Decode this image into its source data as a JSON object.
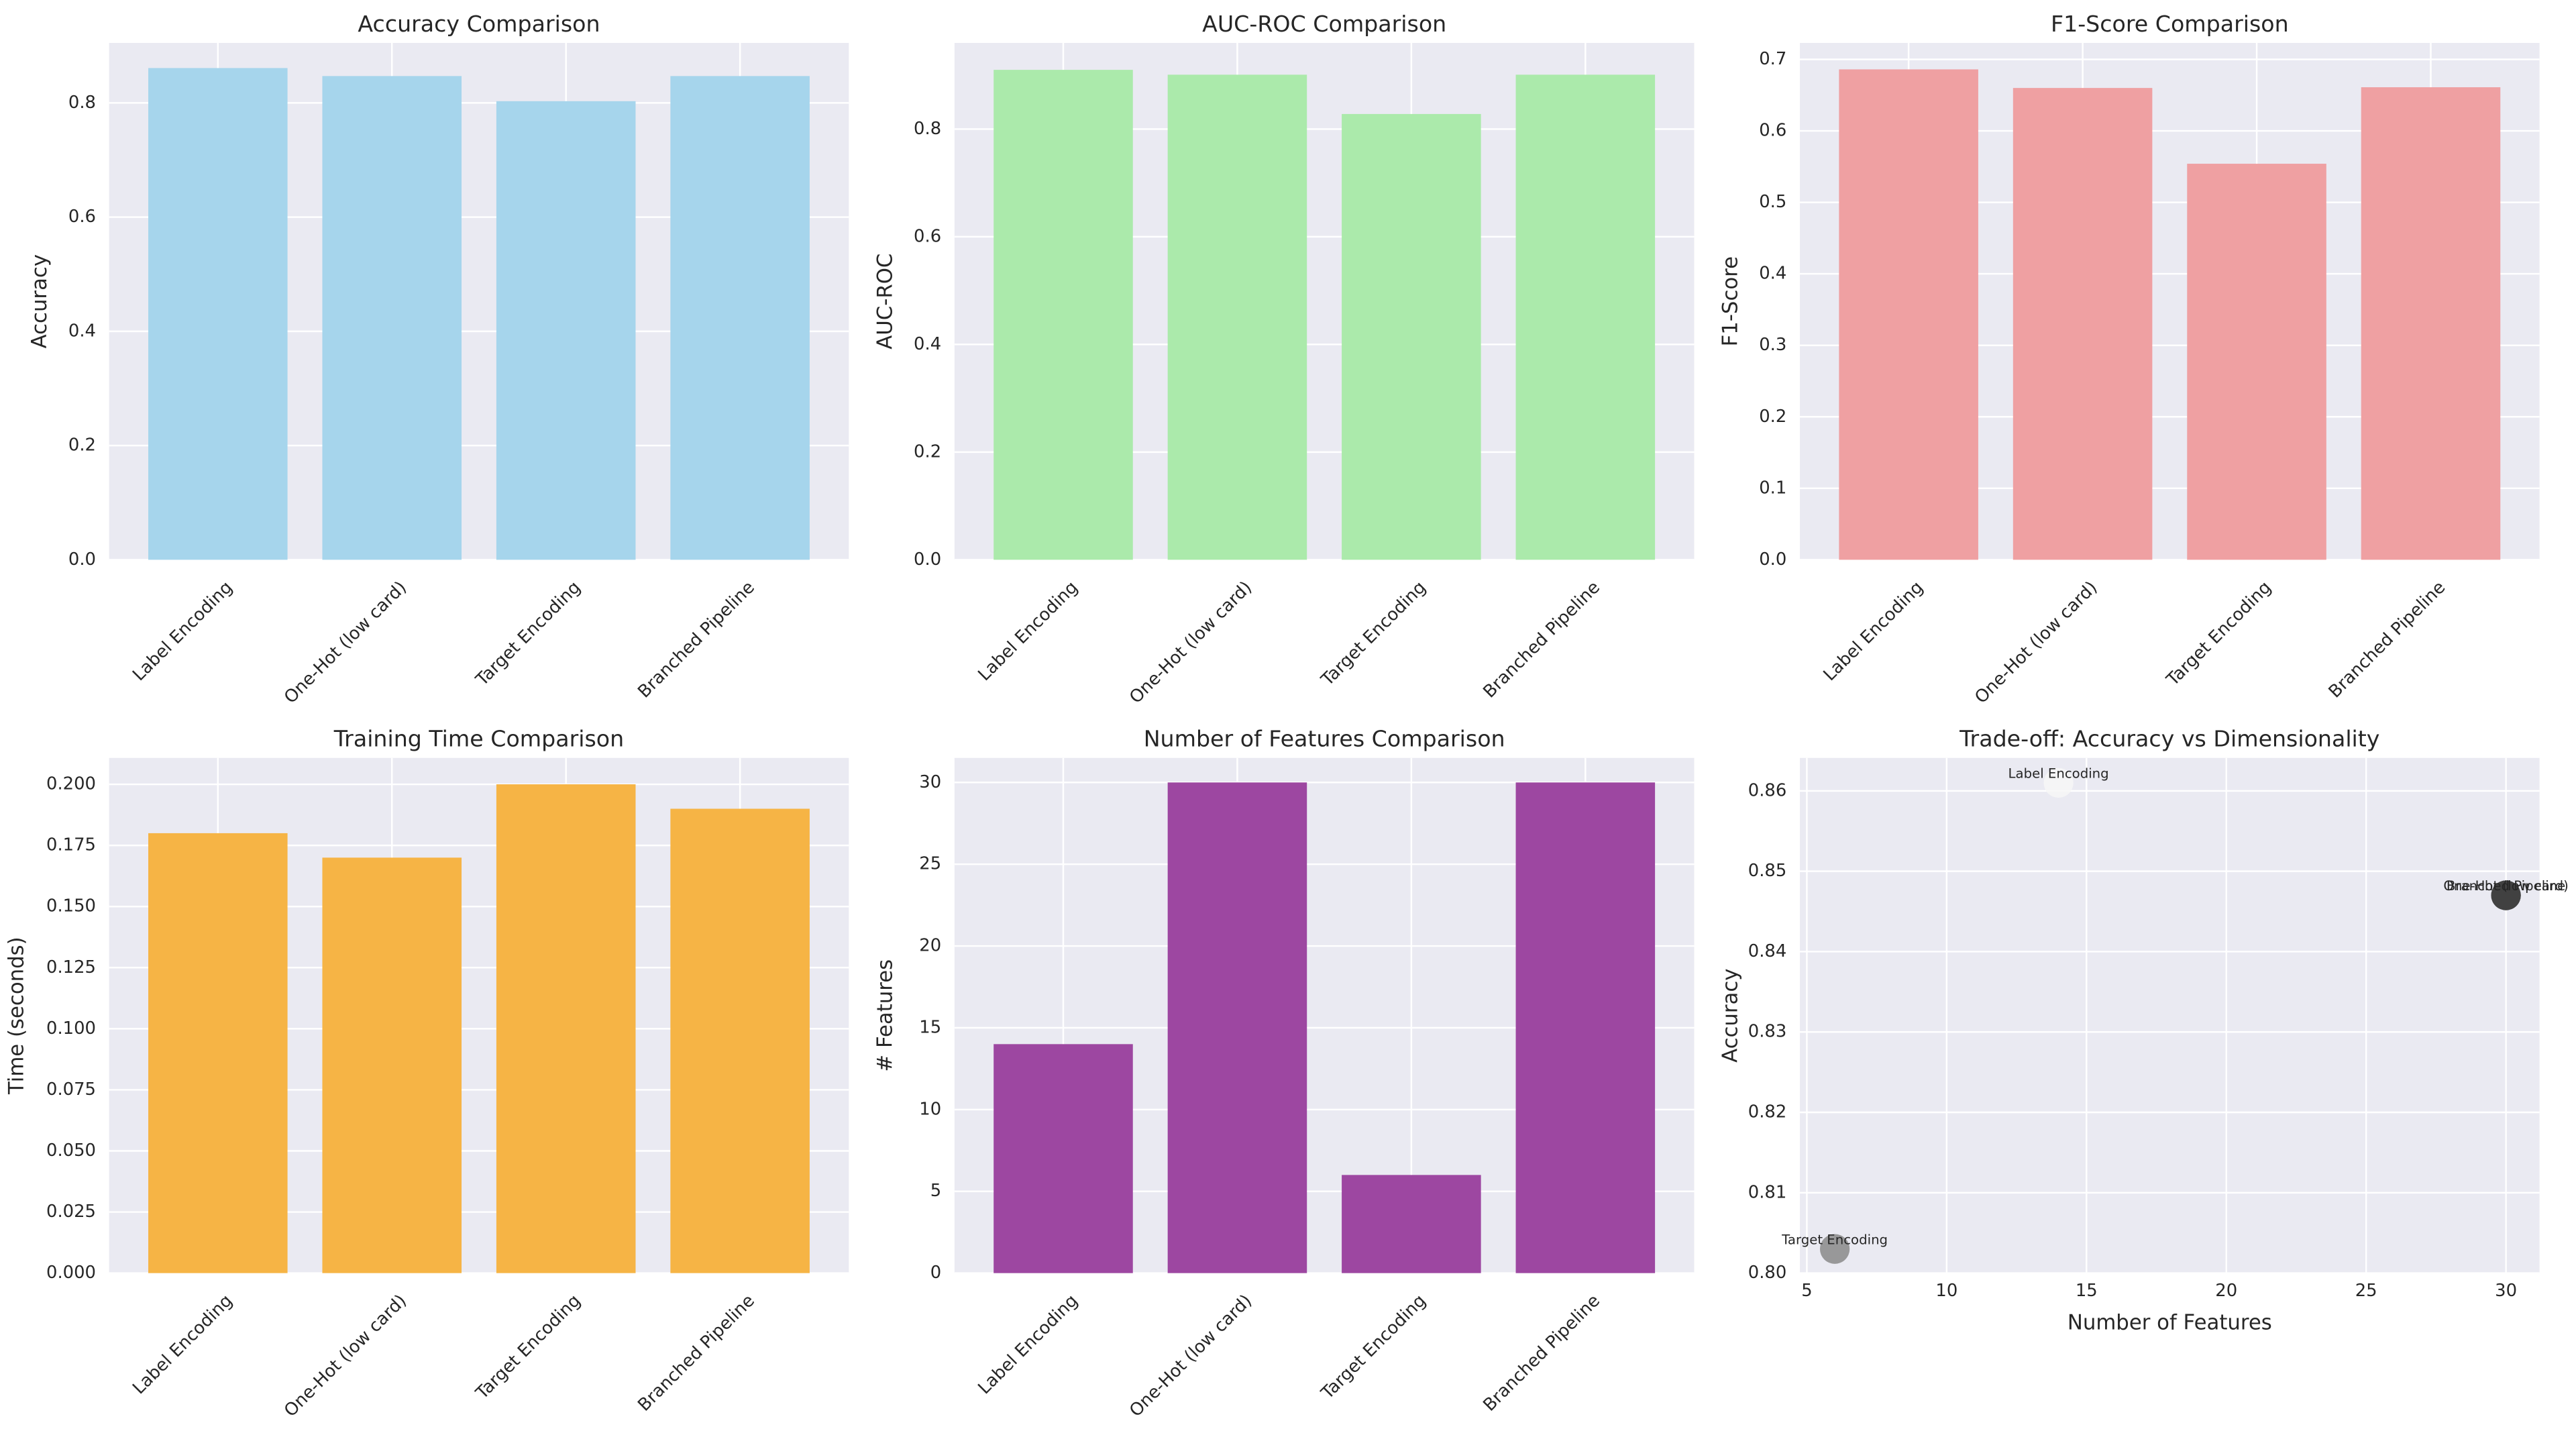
{
  "chart_data": [
    {
      "type": "bar",
      "title": "Accuracy Comparison",
      "y_label": "Accuracy",
      "categories": [
        "Label Encoding",
        "One-Hot (low card)",
        "Target Encoding",
        "Branched Pipeline"
      ],
      "values": [
        0.861,
        0.847,
        0.803,
        0.847
      ],
      "color": "#a6d5ec",
      "ylim": [
        0,
        0.905
      ],
      "yticks": [
        {
          "value": 0,
          "label": "0.0"
        },
        0.2,
        0.4,
        0.6,
        0.8
      ],
      "grid": true
    },
    {
      "type": "bar",
      "title": "AUC-ROC Comparison",
      "y_label": "AUC-ROC",
      "categories": [
        "Label Encoding",
        "One-Hot (low card)",
        "Target Encoding",
        "Branched Pipeline"
      ],
      "values": [
        0.91,
        0.901,
        0.828,
        0.901
      ],
      "color": "#abeaab",
      "ylim": [
        0,
        0.96
      ],
      "yticks": [
        {
          "value": 0,
          "label": "0.0"
        },
        0.2,
        0.4,
        0.6,
        0.8
      ],
      "grid": true
    },
    {
      "type": "bar",
      "title": "F1-Score Comparison",
      "y_label": "F1-Score",
      "categories": [
        "Label Encoding",
        "One-Hot (low card)",
        "Target Encoding",
        "Branched Pipeline"
      ],
      "values": [
        0.686,
        0.66,
        0.554,
        0.661
      ],
      "color": "#efa0a2",
      "ylim": [
        0,
        0.723
      ],
      "yticks": [
        {
          "value": 0,
          "label": "0.0"
        },
        0.1,
        0.2,
        0.3,
        0.4,
        0.5,
        0.6,
        0.7
      ],
      "grid": true
    },
    {
      "type": "bar",
      "title": "Training Time Comparison",
      "y_label": "Time (seconds)",
      "categories": [
        "Label Encoding",
        "One-Hot (low card)",
        "Target Encoding",
        "Branched Pipeline"
      ],
      "values": [
        0.18,
        0.17,
        0.2,
        0.19
      ],
      "color": "#f6b445",
      "ylim": [
        0,
        0.2108
      ],
      "yticks": [
        {
          "value": 0,
          "label": "0.000"
        },
        0.025,
        {
          "value": 0.05,
          "label": "0.050"
        },
        0.075,
        {
          "value": 0.1,
          "label": "0.100"
        },
        0.125,
        {
          "value": 0.15,
          "label": "0.150"
        },
        0.175,
        {
          "value": 0.2,
          "label": "0.200"
        }
      ],
      "grid": true
    },
    {
      "type": "bar",
      "title": "Number of Features Comparison",
      "y_label": "# Features",
      "categories": [
        "Label Encoding",
        "One-Hot (low card)",
        "Target Encoding",
        "Branched Pipeline"
      ],
      "values": [
        14,
        30,
        6,
        30
      ],
      "color": "#9d47a1",
      "ylim": [
        0,
        31.5
      ],
      "yticks": [
        0,
        5,
        10,
        15,
        20,
        25,
        30
      ],
      "grid": true
    },
    {
      "type": "scatter",
      "title": "Trade-off: Accuracy vs Dimensionality",
      "x_label": "Number of Features",
      "y_label": "Accuracy",
      "labels": [
        "Label Encoding",
        "One-Hot (low card)",
        "Target Encoding",
        "Branched Pipeline"
      ],
      "x": [
        14,
        30,
        6,
        30
      ],
      "values": [
        0.861,
        0.847,
        0.803,
        0.847
      ],
      "colors": [
        "#f7f7f7",
        "#3d3d3d",
        "#8a8a8a",
        "#3d3d3d"
      ],
      "xlim": [
        4.75,
        31.2
      ],
      "xticks": [
        5,
        10,
        15,
        20,
        25,
        30
      ],
      "ylim": [
        0.8,
        0.8641
      ],
      "yticks": [
        {
          "value": 0.8,
          "label": "0.80"
        },
        0.81,
        0.82,
        0.83,
        0.84,
        0.85,
        0.86
      ],
      "grid": true
    }
  ]
}
